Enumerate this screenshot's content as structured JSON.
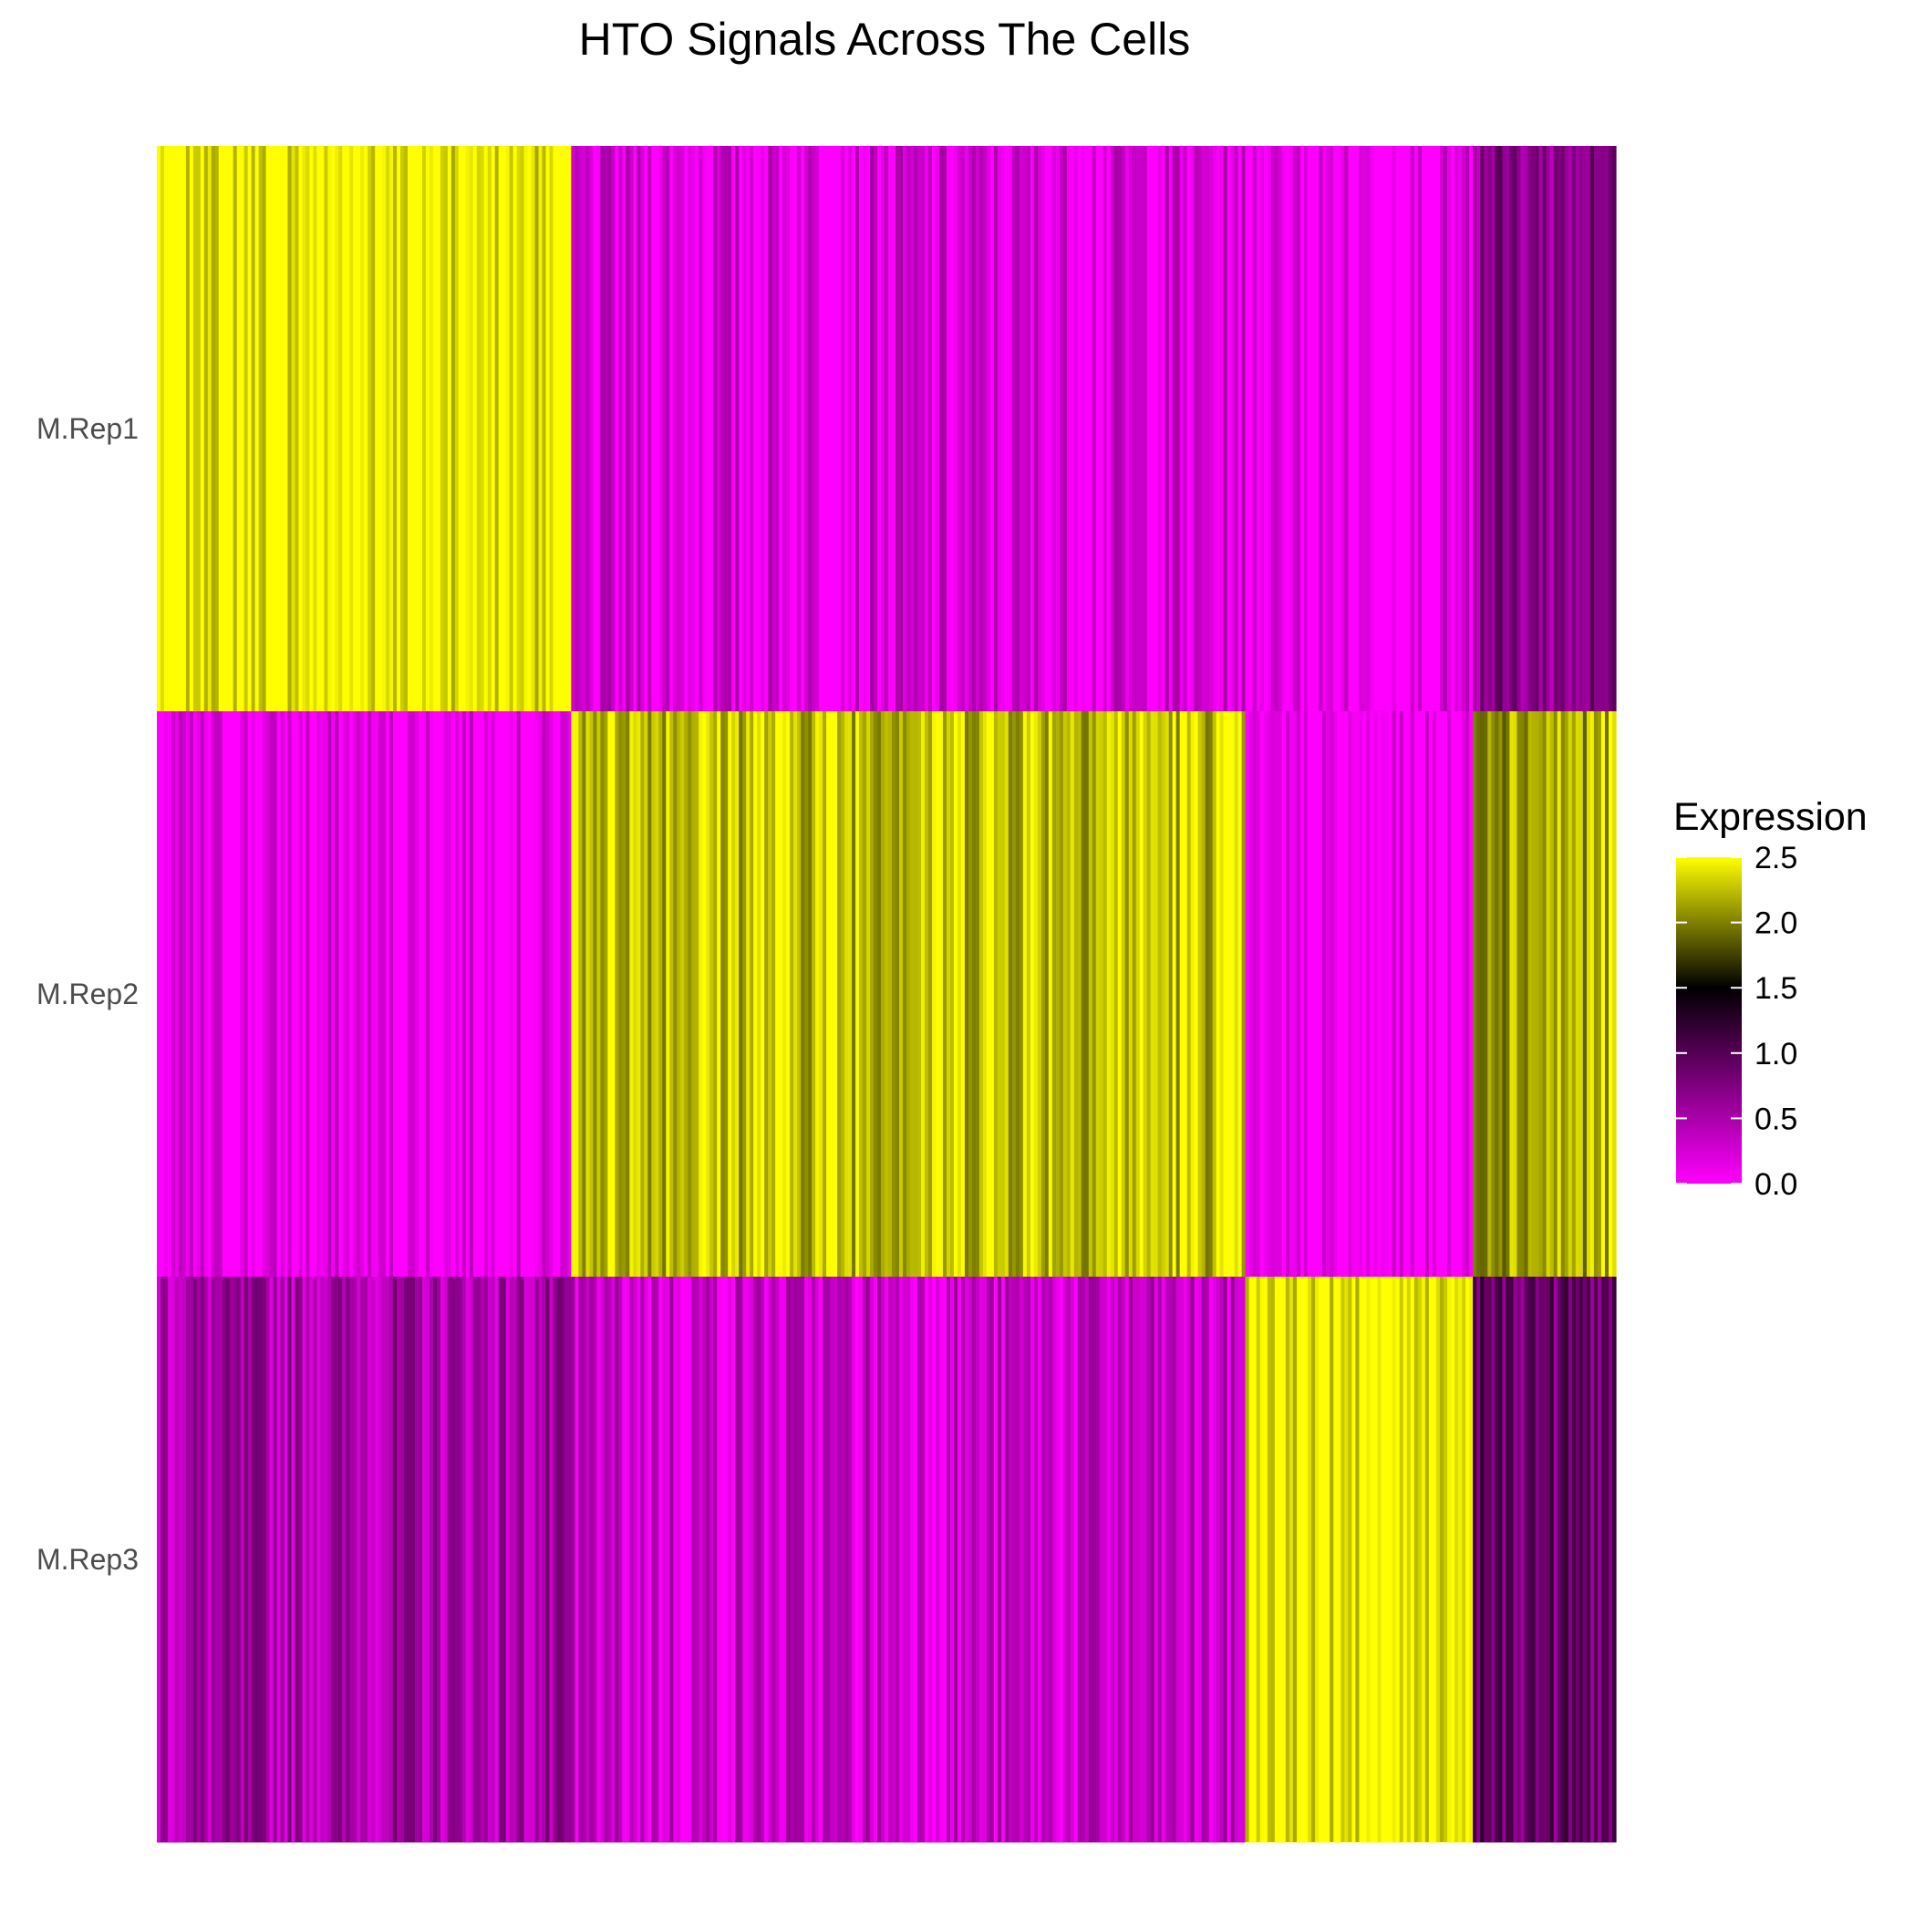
{
  "chart_data": {
    "type": "heatmap",
    "title": "HTO Signals Across The Cells",
    "xlabel": "",
    "ylabel": "",
    "rows": [
      "M.Rep1",
      "M.Rep2",
      "M.Rep3"
    ],
    "column_groups": [
      {
        "cell_fraction": 0.284,
        "values": {
          "M.Rep1": 2.5,
          "M.Rep2": 0.1,
          "M.Rep3": 0.5
        }
      },
      {
        "cell_fraction": 0.462,
        "values": {
          "M.Rep1": 0.2,
          "M.Rep2": 2.3,
          "M.Rep3": 0.3
        }
      },
      {
        "cell_fraction": 0.156,
        "values": {
          "M.Rep1": 0.1,
          "M.Rep2": 0.0,
          "M.Rep3": 2.5
        }
      },
      {
        "cell_fraction": 0.098,
        "values": {
          "M.Rep1": 0.7,
          "M.Rep2": 2.2,
          "M.Rep3": 0.9
        }
      }
    ],
    "legend": {
      "title": "Expression",
      "position": "right",
      "ticks": [
        "0.0",
        "0.5",
        "1.0",
        "1.5",
        "2.0",
        "2.5"
      ],
      "range": [
        0,
        2.5
      ],
      "colors": [
        "#ff00ff",
        "#000000",
        "#ffff00"
      ]
    },
    "grid": false
  }
}
